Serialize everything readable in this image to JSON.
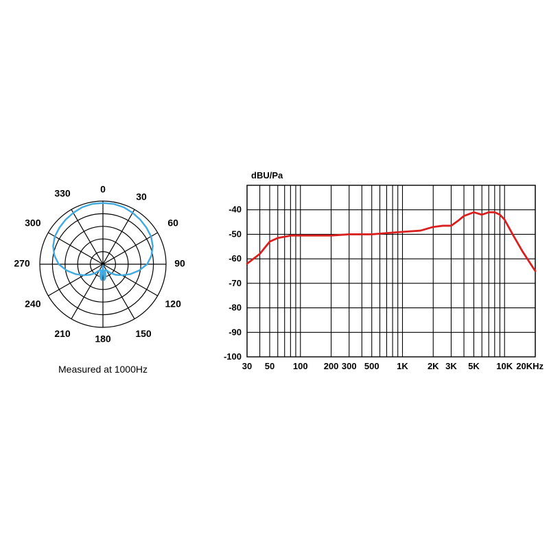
{
  "polar": {
    "caption": "Measured at 1000Hz",
    "angle_labels": [
      "0",
      "30",
      "60",
      "90",
      "120",
      "150",
      "180",
      "210",
      "240",
      "270",
      "300",
      "330"
    ],
    "angle_label_positions": [
      {
        "a": 0,
        "r": 108
      },
      {
        "a": 30,
        "r": 112
      },
      {
        "a": 60,
        "r": 118
      },
      {
        "a": 90,
        "r": 112
      },
      {
        "a": 120,
        "r": 118
      },
      {
        "a": 150,
        "r": 118
      },
      {
        "a": 180,
        "r": 110
      },
      {
        "a": 210,
        "r": 118
      },
      {
        "a": 240,
        "r": 118
      },
      {
        "a": 270,
        "r": 118
      },
      {
        "a": 300,
        "r": 118
      },
      {
        "a": 330,
        "r": 118
      }
    ],
    "ring_count": 5,
    "outer_radius": 92,
    "grid_color": "#000000",
    "grid_width": 1.2,
    "line_color": "#3fa9e0",
    "line_width": 2.4,
    "label_fontsize": 14,
    "label_fontweight": "bold",
    "caption_fontsize": 14,
    "pattern_points": [
      {
        "a": 0,
        "r": 0.97
      },
      {
        "a": 10,
        "r": 0.97
      },
      {
        "a": 20,
        "r": 0.96
      },
      {
        "a": 30,
        "r": 0.94
      },
      {
        "a": 40,
        "r": 0.92
      },
      {
        "a": 50,
        "r": 0.9
      },
      {
        "a": 60,
        "r": 0.88
      },
      {
        "a": 70,
        "r": 0.84
      },
      {
        "a": 80,
        "r": 0.78
      },
      {
        "a": 90,
        "r": 0.7
      },
      {
        "a": 100,
        "r": 0.58
      },
      {
        "a": 110,
        "r": 0.46
      },
      {
        "a": 120,
        "r": 0.35
      },
      {
        "a": 130,
        "r": 0.26
      },
      {
        "a": 140,
        "r": 0.18
      },
      {
        "a": 150,
        "r": 0.11
      },
      {
        "a": 160,
        "r": 0.1
      },
      {
        "a": 165,
        "r": 0.15
      },
      {
        "a": 170,
        "r": 0.22
      },
      {
        "a": 175,
        "r": 0.25
      },
      {
        "a": 180,
        "r": 0.02
      },
      {
        "a": 185,
        "r": 0.25
      },
      {
        "a": 190,
        "r": 0.22
      },
      {
        "a": 195,
        "r": 0.15
      },
      {
        "a": 200,
        "r": 0.1
      },
      {
        "a": 210,
        "r": 0.11
      },
      {
        "a": 220,
        "r": 0.18
      },
      {
        "a": 230,
        "r": 0.26
      },
      {
        "a": 240,
        "r": 0.35
      },
      {
        "a": 250,
        "r": 0.46
      },
      {
        "a": 260,
        "r": 0.58
      },
      {
        "a": 270,
        "r": 0.7
      },
      {
        "a": 280,
        "r": 0.78
      },
      {
        "a": 290,
        "r": 0.84
      },
      {
        "a": 300,
        "r": 0.88
      },
      {
        "a": 310,
        "r": 0.9
      },
      {
        "a": 320,
        "r": 0.92
      },
      {
        "a": 330,
        "r": 0.94
      },
      {
        "a": 340,
        "r": 0.96
      },
      {
        "a": 350,
        "r": 0.97
      }
    ]
  },
  "freq": {
    "ylabel": "dBU/Pa",
    "ylim": [
      -100,
      -30
    ],
    "ytick_step": 10,
    "ytick_labels": [
      "-40",
      "-50",
      "-60",
      "-70",
      "-80",
      "-90",
      "-100"
    ],
    "xlim": [
      30,
      20000
    ],
    "xtick_majors": [
      30,
      50,
      100,
      200,
      300,
      500,
      1000,
      2000,
      3000,
      5000,
      10000,
      20000
    ],
    "xtick_labels": [
      "30",
      "50",
      "100",
      "200",
      "300",
      "500",
      "1K",
      "2K",
      "3K",
      "5K",
      "10K",
      "20KHz"
    ],
    "xtick_minors": [
      40,
      60,
      70,
      80,
      90,
      400,
      600,
      700,
      800,
      900,
      4000,
      6000,
      7000,
      8000,
      9000
    ],
    "grid_color": "#000000",
    "grid_width": 1.1,
    "border_color": "#000000",
    "border_width": 1.4,
    "label_fontsize": 13,
    "label_fontweight": "bold",
    "line_color": "#d9201f",
    "line_width": 2.8,
    "data": [
      {
        "f": 30,
        "db": -62
      },
      {
        "f": 40,
        "db": -58
      },
      {
        "f": 50,
        "db": -53
      },
      {
        "f": 60,
        "db": -51.5
      },
      {
        "f": 70,
        "db": -51
      },
      {
        "f": 80,
        "db": -50.5
      },
      {
        "f": 100,
        "db": -50.5
      },
      {
        "f": 150,
        "db": -50.5
      },
      {
        "f": 200,
        "db": -50.5
      },
      {
        "f": 300,
        "db": -50
      },
      {
        "f": 400,
        "db": -50
      },
      {
        "f": 500,
        "db": -50
      },
      {
        "f": 700,
        "db": -49.5
      },
      {
        "f": 1000,
        "db": -49
      },
      {
        "f": 1500,
        "db": -48.5
      },
      {
        "f": 2000,
        "db": -47
      },
      {
        "f": 2500,
        "db": -46.5
      },
      {
        "f": 3000,
        "db": -46.5
      },
      {
        "f": 3500,
        "db": -44.5
      },
      {
        "f": 4000,
        "db": -42.5
      },
      {
        "f": 5000,
        "db": -41
      },
      {
        "f": 6000,
        "db": -42
      },
      {
        "f": 7000,
        "db": -41
      },
      {
        "f": 8000,
        "db": -41
      },
      {
        "f": 9000,
        "db": -42
      },
      {
        "f": 10000,
        "db": -44
      },
      {
        "f": 12000,
        "db": -50
      },
      {
        "f": 15000,
        "db": -57
      },
      {
        "f": 20000,
        "db": -65
      }
    ]
  }
}
